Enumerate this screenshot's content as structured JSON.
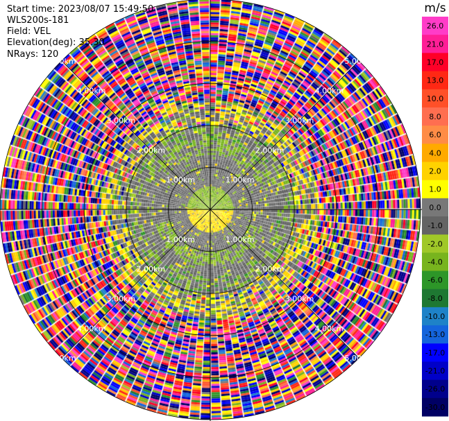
{
  "header": {
    "start_time": "Start time: 2023/08/07 15:49:50",
    "instrument": "WLS200s-181",
    "field": "Field: VEL",
    "elevation": "Elevation(deg): 35.30",
    "nrays": "NRays: 120"
  },
  "chart_data": {
    "type": "heatmap",
    "projection": "polar-ppi",
    "field": "VEL",
    "units": "m/s",
    "nrays": 120,
    "max_range_km": 5,
    "range_rings_km": [
      1,
      2,
      3,
      4,
      5
    ],
    "ring_labels": [
      "1.00km",
      "2.00km",
      "3.00km",
      "4.00km",
      "5.00km"
    ],
    "colorbar": {
      "title": "m/s",
      "ticks": [
        "26.0",
        "21.0",
        "17.0",
        "13.0",
        "10.0",
        "8.0",
        "6.0",
        "4.0",
        "2.0",
        "1.0",
        "0.0",
        "-1.0",
        "-2.0",
        "-4.0",
        "-6.0",
        "-8.0",
        "-10.0",
        "-13.0",
        "-17.0",
        "-21.0",
        "-26.0",
        "-30.0"
      ],
      "bins": [
        {
          "lo": 26,
          "hi": 30,
          "color": "#ff3cc8"
        },
        {
          "lo": 21,
          "hi": 26,
          "color": "#ff1e96"
        },
        {
          "lo": 17,
          "hi": 21,
          "color": "#ff0028"
        },
        {
          "lo": 13,
          "hi": 17,
          "color": "#ff2814"
        },
        {
          "lo": 10,
          "hi": 13,
          "color": "#ff5028"
        },
        {
          "lo": 8,
          "hi": 10,
          "color": "#ff6e50"
        },
        {
          "lo": 6,
          "hi": 8,
          "color": "#ff8c46"
        },
        {
          "lo": 4,
          "hi": 6,
          "color": "#ffaa00"
        },
        {
          "lo": 2,
          "hi": 4,
          "color": "#ffd200"
        },
        {
          "lo": 1,
          "hi": 2,
          "color": "#ffff00"
        },
        {
          "lo": 0,
          "hi": 1,
          "color": "#787878"
        },
        {
          "lo": -1,
          "hi": 0,
          "color": "#646464"
        },
        {
          "lo": -2,
          "hi": -1,
          "color": "#a0c828"
        },
        {
          "lo": -4,
          "hi": -2,
          "color": "#78b41e"
        },
        {
          "lo": -6,
          "hi": -4,
          "color": "#2d9628"
        },
        {
          "lo": -8,
          "hi": -6,
          "color": "#1e7832"
        },
        {
          "lo": -10,
          "hi": -8,
          "color": "#1e82c8"
        },
        {
          "lo": -13,
          "hi": -10,
          "color": "#1464dc"
        },
        {
          "lo": -17,
          "hi": -13,
          "color": "#0000ff"
        },
        {
          "lo": -21,
          "hi": -17,
          "color": "#0000c8"
        },
        {
          "lo": -26,
          "hi": -21,
          "color": "#00008c"
        },
        {
          "lo": -30,
          "hi": -26,
          "color": "#000064"
        }
      ]
    }
  }
}
